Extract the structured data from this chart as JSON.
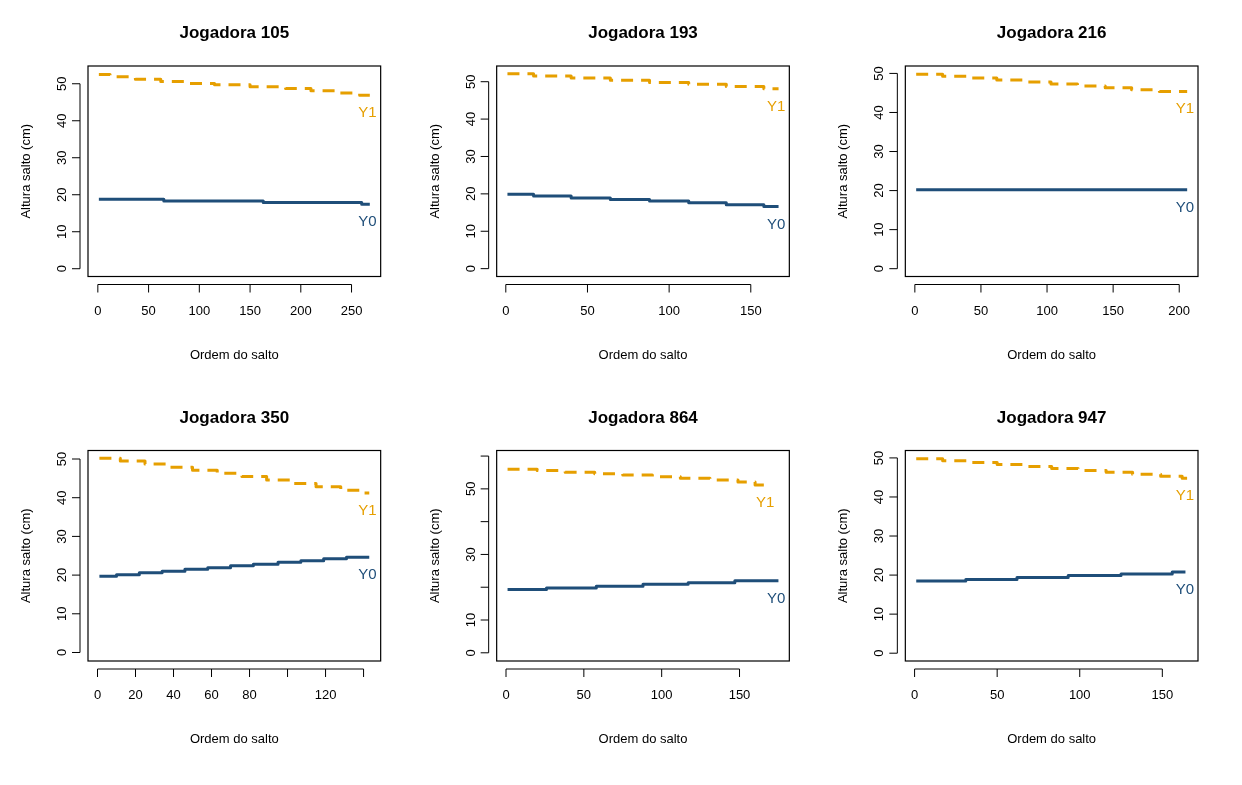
{
  "chart_data": [
    {
      "type": "step",
      "title": "Jogadora 105",
      "xlabel": "Ordem do salto",
      "ylabel": "Altura salto (cm)",
      "xlim": [
        -9.7,
        278.7
      ],
      "xticks": [
        0,
        50,
        100,
        150,
        200,
        250
      ],
      "ylim": [
        -2.1,
        54.8
      ],
      "yticks": [
        0,
        10,
        20,
        30,
        40,
        50
      ],
      "series": [
        {
          "name": "Y1",
          "color": "#e69f00",
          "line_style": "dashed",
          "x": [
            1,
            12,
            37,
            62,
            90,
            115,
            150,
            185,
            210,
            235,
            258,
            268
          ],
          "values": [
            52.5,
            51.9,
            51.2,
            50.6,
            50.1,
            49.7,
            49.2,
            48.7,
            48.1,
            47.5,
            46.9,
            46.9
          ]
        },
        {
          "name": "Y0",
          "color": "#1f4e79",
          "line_style": "solid",
          "x": [
            1,
            65,
            163,
            260,
            268
          ],
          "values": [
            18.8,
            18.3,
            17.9,
            17.4,
            17.4
          ]
        }
      ]
    },
    {
      "type": "step",
      "title": "Jogadora 193",
      "xlabel": "Ordem do salto",
      "ylabel": "Altura salto (cm)",
      "xlim": [
        -5.6,
        173.6
      ],
      "xticks": [
        0,
        50,
        100,
        150
      ],
      "ylim": [
        -2.1,
        54.2
      ],
      "yticks": [
        0,
        10,
        20,
        30,
        40,
        50
      ],
      "series": [
        {
          "name": "Y1",
          "color": "#e69f00",
          "line_style": "dashed",
          "x": [
            1,
            17,
            40,
            64,
            88,
            112,
            135,
            158,
            167
          ],
          "values": [
            52.1,
            51.5,
            51.0,
            50.4,
            49.8,
            49.3,
            48.7,
            48.1,
            48.1
          ]
        },
        {
          "name": "Y0",
          "color": "#1f4e79",
          "line_style": "solid",
          "x": [
            1,
            17,
            40,
            64,
            88,
            112,
            135,
            158,
            167
          ],
          "values": [
            19.9,
            19.4,
            18.9,
            18.5,
            18.1,
            17.6,
            17.1,
            16.6,
            16.6
          ]
        }
      ]
    },
    {
      "type": "step",
      "title": "Jogadora 216",
      "xlabel": "Ordem do salto",
      "ylabel": "Altura salto (cm)",
      "xlim": [
        -7.2,
        214.2
      ],
      "xticks": [
        0,
        50,
        100,
        150,
        200
      ],
      "ylim": [
        -2.0,
        51.9
      ],
      "yticks": [
        0,
        10,
        20,
        30,
        40,
        50
      ],
      "series": [
        {
          "name": "Y1",
          "color": "#e69f00",
          "line_style": "dashed",
          "x": [
            1,
            21,
            41,
            62,
            82,
            103,
            123,
            144,
            164,
            185,
            206
          ],
          "values": [
            49.8,
            49.3,
            48.8,
            48.3,
            47.8,
            47.3,
            46.8,
            46.3,
            45.8,
            45.4,
            45.4
          ]
        },
        {
          "name": "Y0",
          "color": "#1f4e79",
          "line_style": "solid",
          "x": [
            1,
            206
          ],
          "values": [
            20.2,
            20.2
          ]
        }
      ]
    },
    {
      "type": "step",
      "title": "Jogadora 350",
      "xlabel": "Ordem do salto",
      "ylabel": "Altura salto (cm)",
      "xlim": [
        -5,
        149
      ],
      "xticks": [
        0,
        20,
        40,
        60,
        80,
        {
          "value": 100,
          "label": null
        },
        120,
        {
          "value": 140,
          "label": null
        }
      ],
      "ylim": [
        -2.2,
        52.2
      ],
      "yticks": [
        0,
        10,
        20,
        30,
        40,
        50
      ],
      "series": [
        {
          "name": "Y1",
          "color": "#e69f00",
          "line_style": "dashed",
          "x": [
            1,
            12,
            25,
            38,
            50,
            63,
            76,
            89,
            102,
            115,
            128,
            138,
            143
          ],
          "values": [
            50.2,
            49.5,
            48.7,
            47.9,
            47.1,
            46.3,
            45.5,
            44.6,
            43.7,
            42.8,
            41.9,
            41.2,
            41.2
          ]
        },
        {
          "name": "Y0",
          "color": "#1f4e79",
          "line_style": "solid",
          "x": [
            1,
            10,
            22,
            34,
            46,
            58,
            70,
            82,
            95,
            107,
            119,
            131,
            143
          ],
          "values": [
            19.7,
            20.1,
            20.6,
            21.0,
            21.5,
            21.9,
            22.4,
            22.8,
            23.3,
            23.7,
            24.2,
            24.6,
            24.6
          ]
        }
      ]
    },
    {
      "type": "step",
      "title": "Jogadora 864",
      "xlabel": "Ordem do salto",
      "ylabel": "Altura salto (cm)",
      "xlim": [
        -6,
        182
      ],
      "xticks": [
        0,
        50,
        100,
        150
      ],
      "ylim": [
        -2.5,
        61.7
      ],
      "yticks": [
        0,
        10,
        {
          "value": 20,
          "label": null
        },
        30,
        {
          "value": 40,
          "label": null
        },
        50,
        {
          "value": 60,
          "label": null
        }
      ],
      "series": [
        {
          "name": "Y1",
          "color": "#e69f00",
          "line_style": "dashed",
          "x": [
            1,
            20,
            38,
            57,
            75,
            94,
            112,
            131,
            149,
            160,
            166
          ],
          "values": [
            56.0,
            55.6,
            55.1,
            54.6,
            54.2,
            53.7,
            53.2,
            52.7,
            52.1,
            51.2,
            51.2
          ]
        },
        {
          "name": "Y0",
          "color": "#1f4e79",
          "line_style": "solid",
          "x": [
            1,
            26,
            58,
            88,
            117,
            147,
            175
          ],
          "values": [
            19.3,
            19.8,
            20.3,
            20.9,
            21.4,
            22.0,
            22.0
          ]
        }
      ]
    },
    {
      "type": "step",
      "title": "Jogadora 947",
      "xlabel": "Ordem do salto",
      "ylabel": "Altura salto (cm)",
      "xlim": [
        -5.6,
        171.6
      ],
      "xticks": [
        0,
        50,
        100,
        150
      ],
      "ylim": [
        -2.0,
        51.9
      ],
      "yticks": [
        0,
        10,
        20,
        30,
        40,
        50
      ],
      "series": [
        {
          "name": "Y1",
          "color": "#e69f00",
          "line_style": "dashed",
          "x": [
            1,
            17,
            33,
            50,
            66,
            83,
            99,
            116,
            132,
            149,
            162,
            165
          ],
          "values": [
            49.8,
            49.3,
            48.8,
            48.3,
            47.8,
            47.3,
            46.8,
            46.3,
            45.8,
            45.3,
            44.8,
            44.8
          ]
        },
        {
          "name": "Y0",
          "color": "#1f4e79",
          "line_style": "solid",
          "x": [
            1,
            31,
            62,
            93,
            125,
            156,
            164
          ],
          "values": [
            18.5,
            18.9,
            19.4,
            19.9,
            20.3,
            20.8,
            20.8
          ]
        }
      ]
    }
  ]
}
